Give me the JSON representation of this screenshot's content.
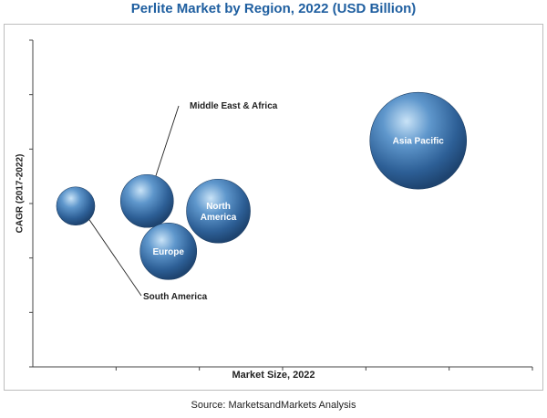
{
  "chart_data": {
    "type": "bubble",
    "title": "Perlite Market by Region, 2022 (USD Billion)",
    "xlabel": "Market Size, 2022",
    "ylabel": "CAGR (2017-2022)",
    "source": "Source: MarketsandMarkets Analysis",
    "series": [
      {
        "name": "South America",
        "x": 0.6,
        "y": 3.2,
        "size": 0.6,
        "label_position": "callout"
      },
      {
        "name": "Middle East & Africa",
        "x": 1.6,
        "y": 3.3,
        "size": 1.0,
        "label_position": "callout"
      },
      {
        "name": "Europe",
        "x": 1.9,
        "y": 2.3,
        "size": 1.1,
        "label_position": "inside"
      },
      {
        "name": "North America",
        "x": 2.6,
        "y": 3.1,
        "size": 1.3,
        "label_position": "inside"
      },
      {
        "name": "Asia Pacific",
        "x": 5.4,
        "y": 4.5,
        "size": 2.2,
        "label_position": "inside"
      }
    ],
    "inside_labels": {
      "Europe": [
        "Europe"
      ],
      "North America": [
        "North",
        "America"
      ],
      "Asia Pacific": [
        "Asia Pacific"
      ]
    },
    "xlim": [
      0,
      7
    ],
    "ylim": [
      0,
      6.5
    ],
    "grid": false,
    "legend": "none"
  }
}
